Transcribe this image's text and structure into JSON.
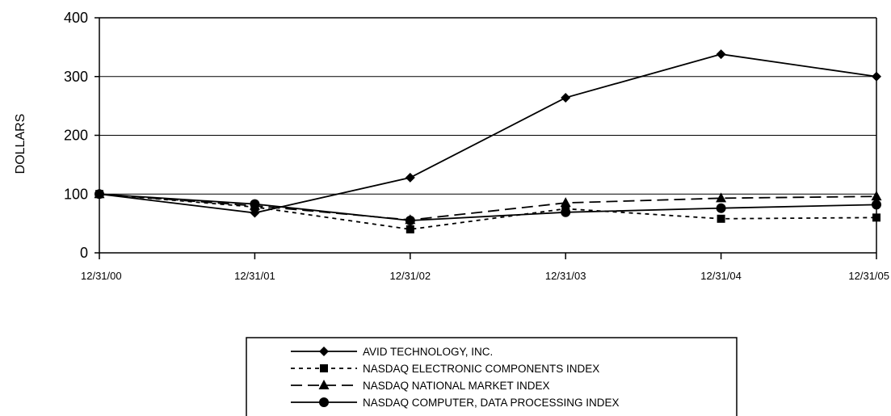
{
  "chart_data": {
    "type": "line",
    "title": "",
    "xlabel": "",
    "ylabel": "DOLLARS",
    "categories": [
      "12/31/00",
      "12/31/01",
      "12/31/02",
      "12/31/03",
      "12/31/04",
      "12/31/05"
    ],
    "yticks": [
      "0",
      "100",
      "200",
      "300",
      "400"
    ],
    "ylim": [
      0,
      400
    ],
    "grid": true,
    "legend_position": "bottom-center",
    "series": [
      {
        "name": "AVID TECHNOLOGY, INC.",
        "values": [
          100,
          68,
          128,
          264,
          338,
          300
        ],
        "marker": "diamond",
        "dash": "solid"
      },
      {
        "name": "NASDAQ ELECTRONIC COMPONENTS INDEX",
        "values": [
          100,
          78,
          40,
          75,
          58,
          60
        ],
        "marker": "square",
        "dash": "dotted"
      },
      {
        "name": "NASDAQ NATIONAL MARKET INDEX",
        "values": [
          100,
          80,
          56,
          85,
          93,
          96
        ],
        "marker": "triangle",
        "dash": "dashed"
      },
      {
        "name": "NASDAQ COMPUTER, DATA PROCESSING INDEX",
        "values": [
          100,
          83,
          55,
          69,
          76,
          82
        ],
        "marker": "circle",
        "dash": "solid"
      }
    ]
  }
}
